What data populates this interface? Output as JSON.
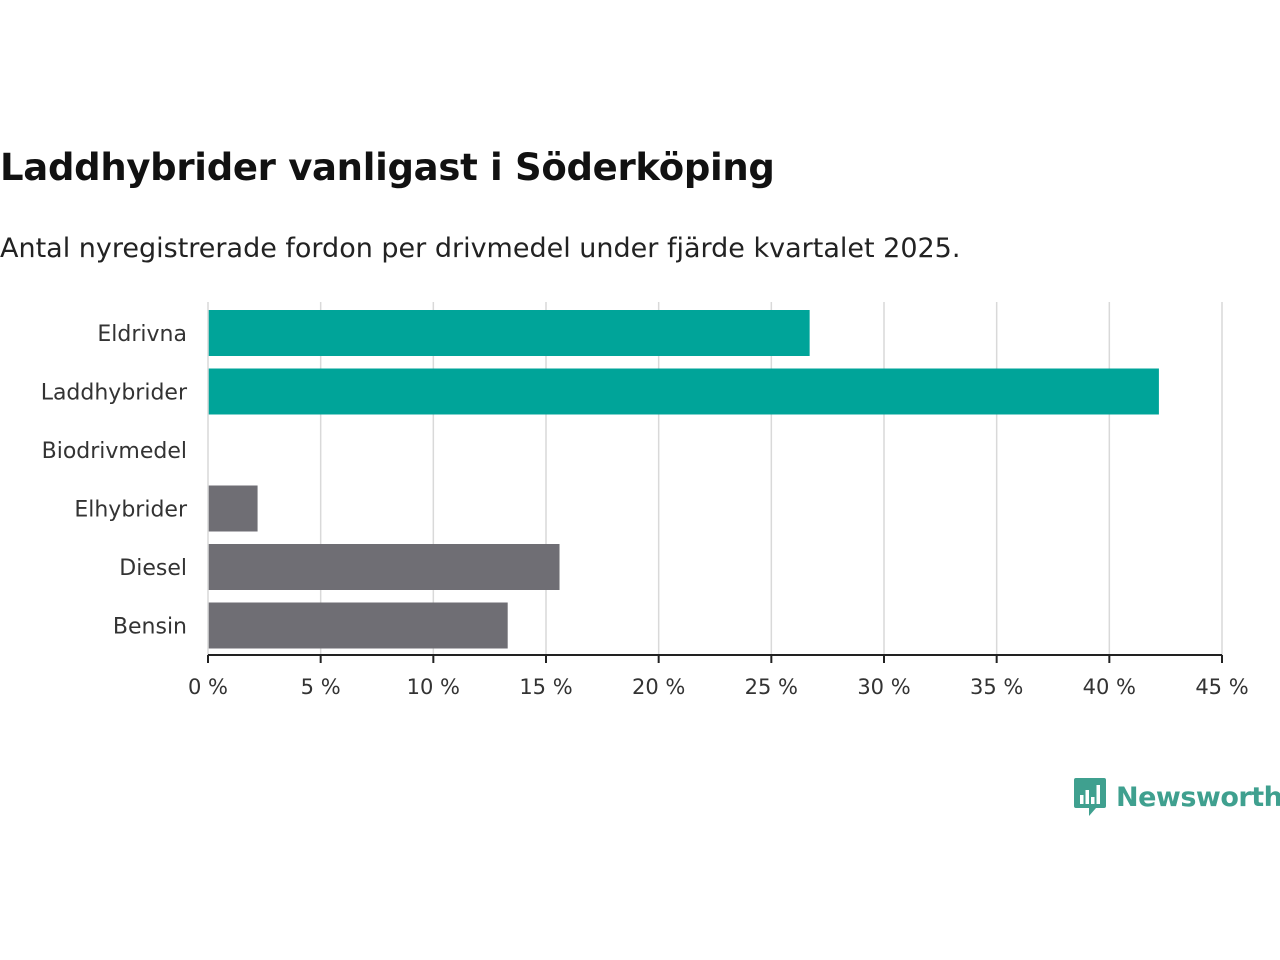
{
  "chart_data": {
    "type": "bar",
    "orientation": "horizontal",
    "title": "Laddhybrider vanligast i Söderköping",
    "subtitle": "Antal nyregistrerade fordon per drivmedel under fjärde kvartalet 2025.",
    "categories": [
      "Eldrivna",
      "Laddhybrider",
      "Biodrivmedel",
      "Elhybrider",
      "Diesel",
      "Bensin"
    ],
    "values": [
      26.7,
      42.2,
      0,
      2.2,
      15.6,
      13.3
    ],
    "colors": [
      "#00a499",
      "#00a499",
      "#00a499",
      "#6f6e74",
      "#6f6e74",
      "#6f6e74"
    ],
    "xlim": [
      0,
      45
    ],
    "xticks": [
      0,
      5,
      10,
      15,
      20,
      25,
      30,
      35,
      40,
      45
    ],
    "tick_labels": [
      "0 %",
      "5 %",
      "10 %",
      "15 %",
      "20 %",
      "25 %",
      "30 %",
      "35 %",
      "40 %",
      "45 %"
    ],
    "xlabel": "",
    "ylabel": "",
    "grid": true
  },
  "brand": {
    "name": "Newsworthy",
    "color": "#3fa08f"
  }
}
